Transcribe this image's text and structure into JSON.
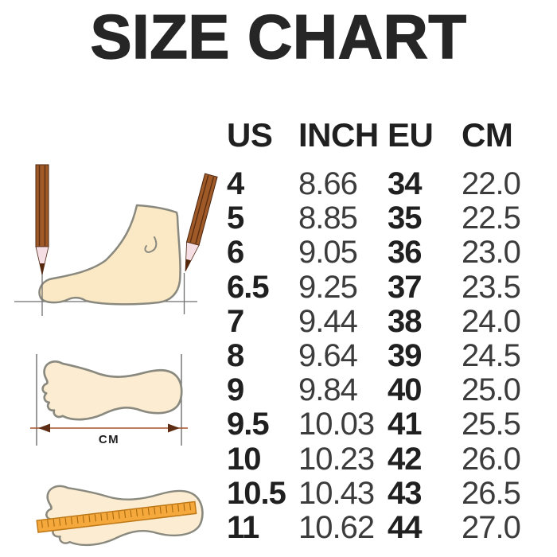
{
  "title": "SIZE CHART",
  "chart_data": {
    "type": "table",
    "title": "SIZE CHART",
    "columns": [
      "US",
      "INCH",
      "EU",
      "CM"
    ],
    "rows": [
      [
        "4",
        "8.66",
        "34",
        "22.0"
      ],
      [
        "5",
        "8.85",
        "35",
        "22.5"
      ],
      [
        "6",
        "9.05",
        "36",
        "23.0"
      ],
      [
        "6.5",
        "9.25",
        "37",
        "23.5"
      ],
      [
        "7",
        "9.44",
        "38",
        "24.0"
      ],
      [
        "8",
        "9.64",
        "39",
        "24.5"
      ],
      [
        "9",
        "9.84",
        "40",
        "25.0"
      ],
      [
        "9.5",
        "10.03",
        "41",
        "25.5"
      ],
      [
        "10",
        "10.23",
        "42",
        "26.0"
      ],
      [
        "10.5",
        "10.43",
        "43",
        "26.5"
      ],
      [
        "11",
        "10.62",
        "44",
        "27.0"
      ]
    ]
  },
  "illustrations": {
    "cm_label": "CM"
  },
  "colors": {
    "title_text": "#262626",
    "bold_column_text": "#202020",
    "light_column_text": "#3c3c3c",
    "foot_fill": "#fbe8c4",
    "footprint_fill": "#fcedd2",
    "outline": "#8a897f",
    "pencil_body": "#a05a28",
    "pencil_stripe": "#5a2e12",
    "pencil_tip": "#f6dfe4",
    "pencil_lead": "#55280e",
    "arrow_head": "#5f2d14",
    "arrow_line": "#a8512c",
    "measure_line": "#6f6f6f",
    "ruler_fill": "#f5a93c",
    "ruler_edge": "#bd7717",
    "ruler_tick": "#a8690f"
  }
}
